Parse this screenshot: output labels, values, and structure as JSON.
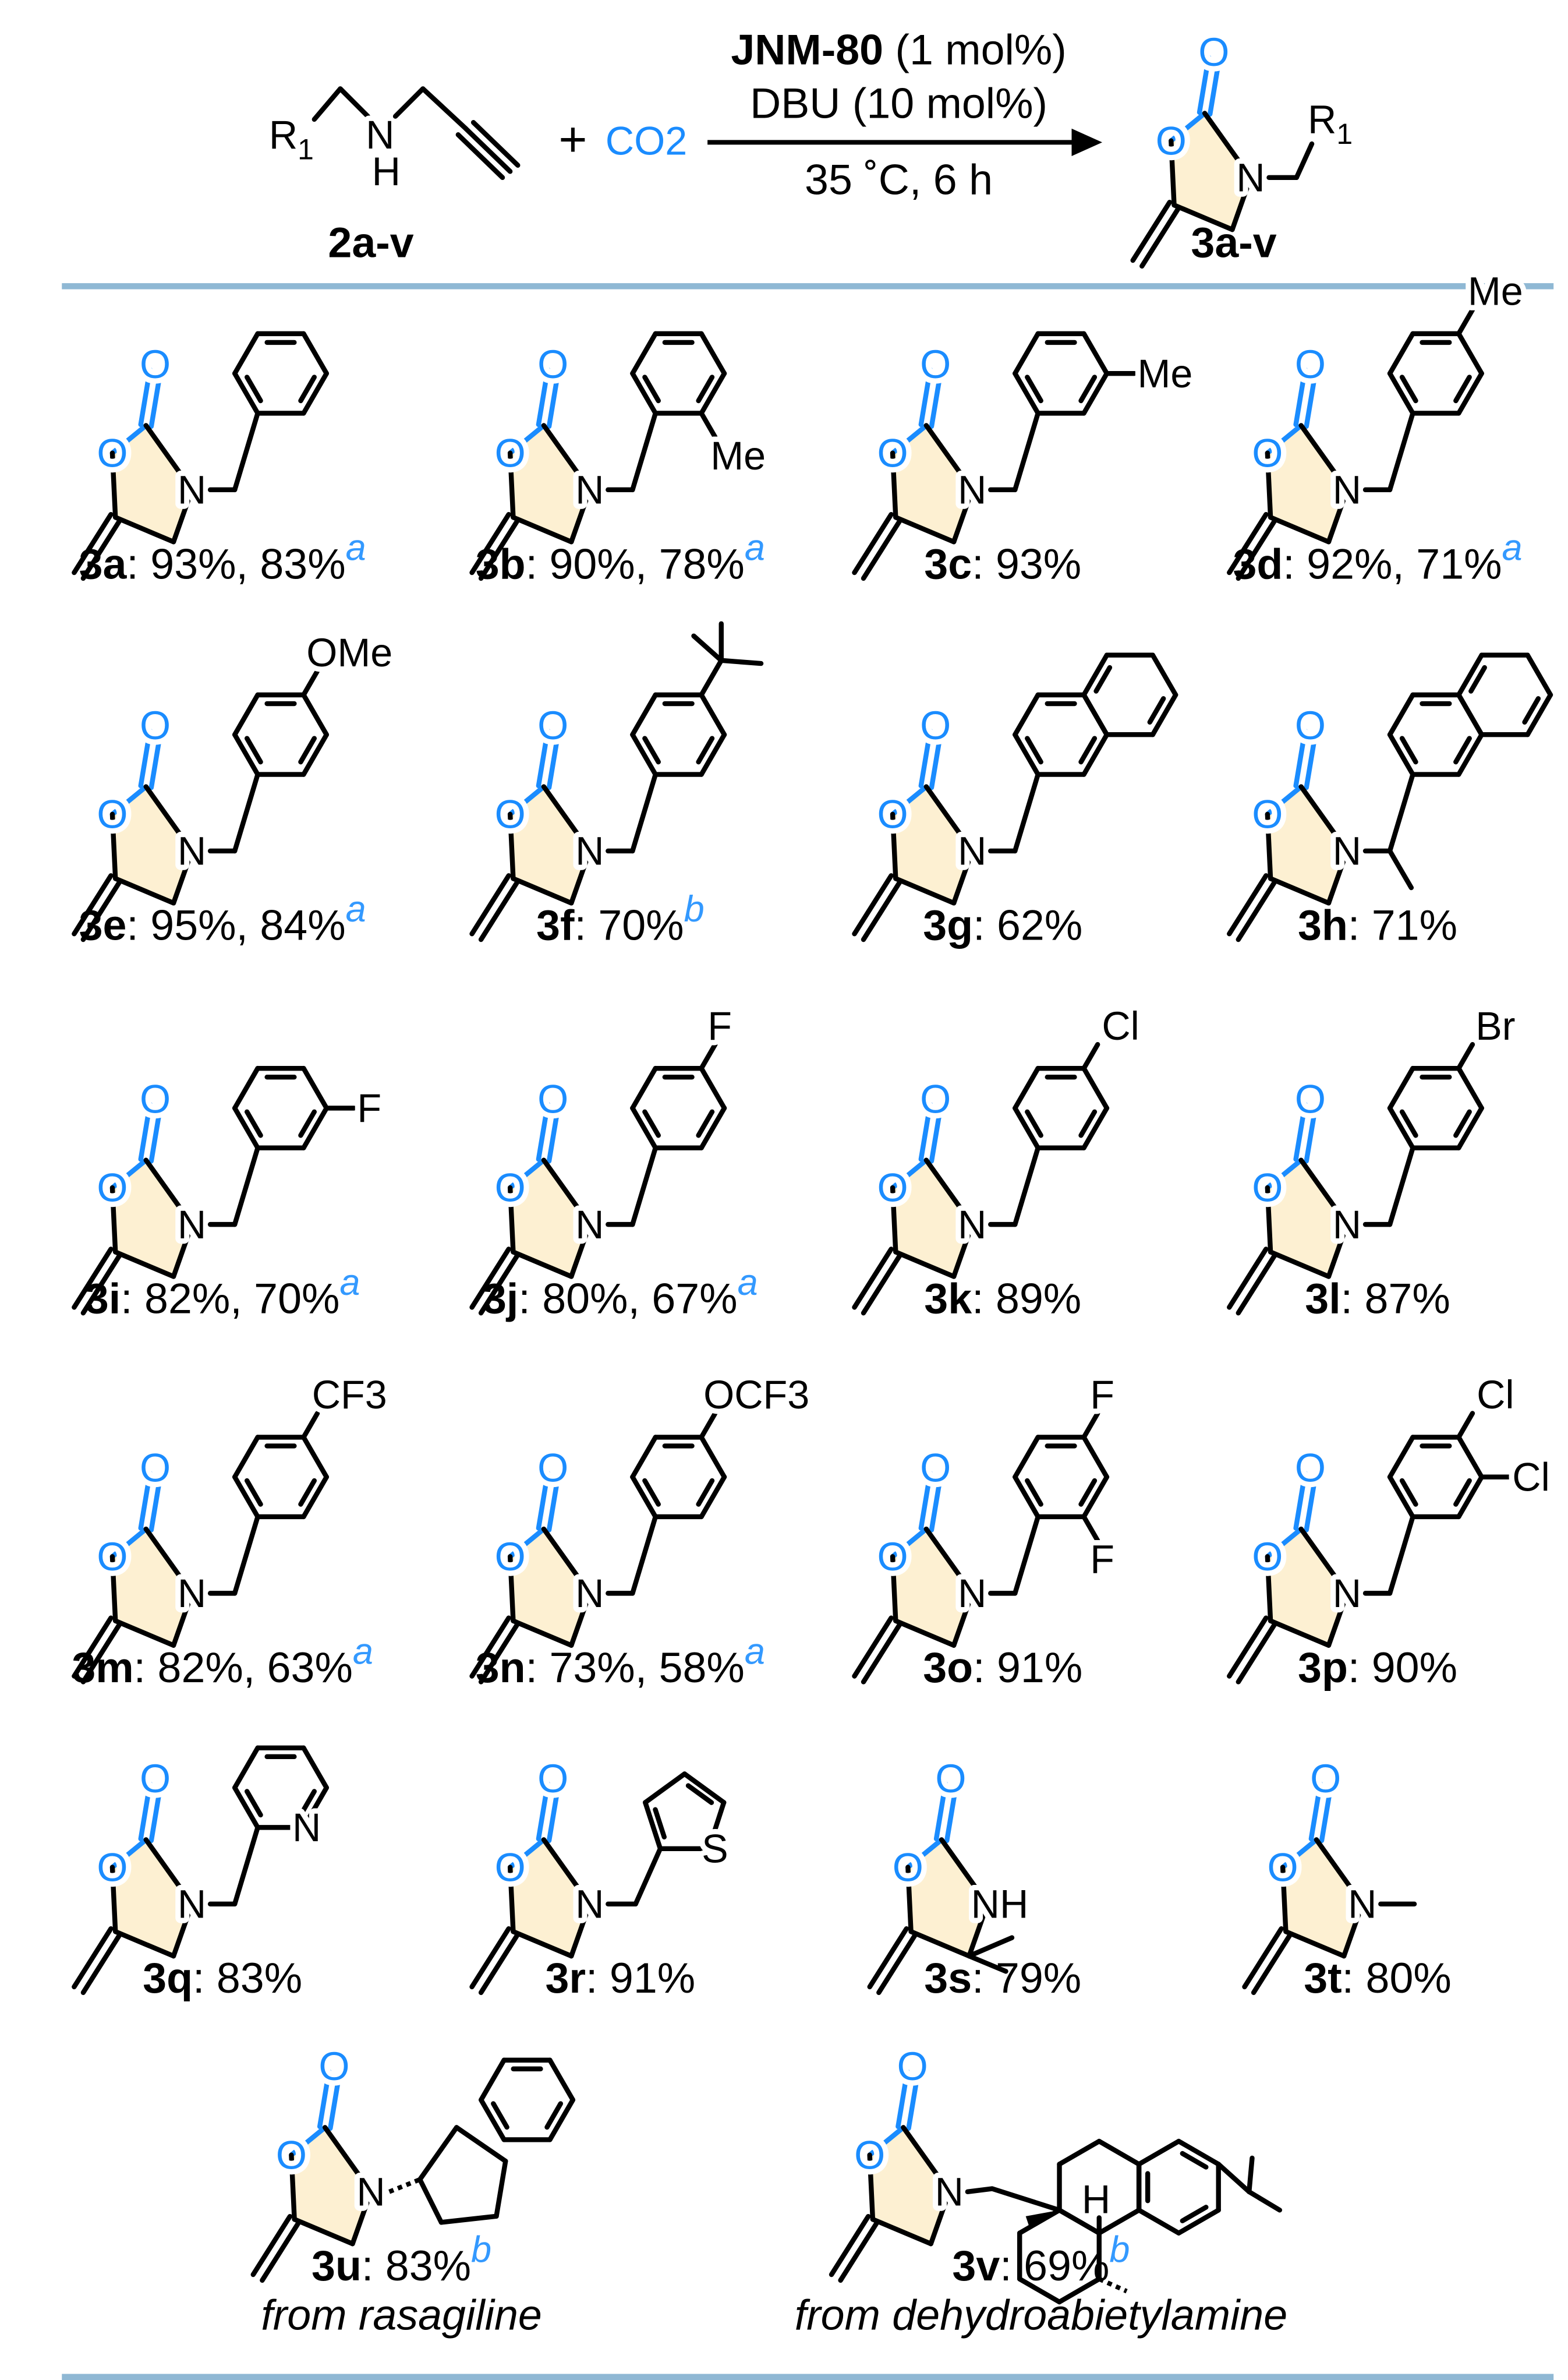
{
  "colors": {
    "heteroatom": "#1a8cff",
    "footnote": "#3399ff",
    "ring_fill": "#fdf0d2",
    "divider": "#8fb8d4",
    "bond": "#000000"
  },
  "reaction": {
    "reactant_label": "2a-v",
    "reactant_atoms": {
      "r": "R1",
      "n": "N",
      "h": "H"
    },
    "plus": "+",
    "co2": "CO2",
    "catalyst_name": "JNM-80",
    "catalyst_loading": " (1 mol%)",
    "base": "DBU (10 mol%)",
    "conditions": "35 ˚C, 6 h",
    "product_label": "3a-v",
    "product_atoms": {
      "o": "O",
      "n": "N",
      "r": "R1"
    }
  },
  "compounds": [
    {
      "id": "3a",
      "yields": ": 93%, 83%",
      "note": "a",
      "type": "benzyl",
      "subs": []
    },
    {
      "id": "3b",
      "yields": ":  90%, 78%",
      "note": "a",
      "type": "benzyl",
      "subs": [
        {
          "pos": "ortho",
          "label": "Me"
        }
      ]
    },
    {
      "id": "3c",
      "yields": ": 93%",
      "note": "",
      "type": "benzyl",
      "subs": [
        {
          "pos": "meta",
          "label": "Me"
        }
      ]
    },
    {
      "id": "3d",
      "yields": ": 92%, 71%",
      "note": "a",
      "type": "benzyl",
      "subs": [
        {
          "pos": "para",
          "label": "Me"
        }
      ]
    },
    {
      "id": "3e",
      "yields": ": 95%, 84%",
      "note": "a",
      "type": "benzyl",
      "subs": [
        {
          "pos": "para",
          "label": "OMe"
        }
      ]
    },
    {
      "id": "3f",
      "yields": ": 70%",
      "note": "b",
      "type": "benzyl",
      "subs": [
        {
          "pos": "para",
          "label": "tBu"
        }
      ]
    },
    {
      "id": "3g",
      "yields": ": 62%",
      "note": "",
      "type": "naphthyl",
      "subs": []
    },
    {
      "id": "3h",
      "yields": ": 71%",
      "note": "",
      "type": "naphthylethyl",
      "subs": []
    },
    {
      "id": "3i",
      "yields": ": 82%, 70%",
      "note": "a",
      "type": "benzyl",
      "subs": [
        {
          "pos": "meta",
          "label": "F"
        }
      ]
    },
    {
      "id": "3j",
      "yields": ": 80%, 67%",
      "note": "a",
      "type": "benzyl",
      "subs": [
        {
          "pos": "para",
          "label": "F"
        }
      ]
    },
    {
      "id": "3k",
      "yields": ": 89%",
      "note": "",
      "type": "benzyl",
      "subs": [
        {
          "pos": "para",
          "label": "Cl"
        }
      ]
    },
    {
      "id": "3l",
      "yields": ": 87%",
      "note": "",
      "type": "benzyl",
      "subs": [
        {
          "pos": "para",
          "label": "Br"
        }
      ]
    },
    {
      "id": "3m",
      "yields": ": 82%, 63%",
      "note": "a",
      "type": "benzyl",
      "subs": [
        {
          "pos": "para",
          "label": "CF3"
        }
      ]
    },
    {
      "id": "3n",
      "yields": ": 73%, 58%",
      "note": "a",
      "type": "benzyl",
      "subs": [
        {
          "pos": "para",
          "label": "OCF3"
        }
      ]
    },
    {
      "id": "3o",
      "yields": ": 91%",
      "note": "",
      "type": "benzyl",
      "subs": [
        {
          "pos": "para",
          "label": "F"
        },
        {
          "pos": "ortho",
          "label": "F"
        }
      ]
    },
    {
      "id": "3p",
      "yields": ": 90%",
      "note": "",
      "type": "benzyl",
      "subs": [
        {
          "pos": "para",
          "label": "Cl"
        },
        {
          "pos": "meta",
          "label": "Cl"
        }
      ]
    },
    {
      "id": "3q",
      "yields": ": 83%",
      "note": "",
      "type": "pyridyl",
      "subs": [],
      "ring_atom": "N"
    },
    {
      "id": "3r",
      "yields": ": 91%",
      "note": "",
      "type": "thienyl",
      "subs": [],
      "ring_atom": "S"
    },
    {
      "id": "3s",
      "yields": ": 79%",
      "note": "",
      "type": "nh-dimethyl",
      "subs": [],
      "n_label": "NH"
    },
    {
      "id": "3t",
      "yields": ": 80%",
      "note": "",
      "type": "n-methyl",
      "subs": []
    },
    {
      "id": "3u",
      "yields": ": 83%",
      "note": "b",
      "type": "indanyl",
      "subs": [],
      "origin": "from rasagiline"
    },
    {
      "id": "3v",
      "yields": ": 69%",
      "note": "b",
      "type": "abietyl",
      "subs": [],
      "origin": "from dehydroabietylamine",
      "h_label": "H"
    }
  ]
}
